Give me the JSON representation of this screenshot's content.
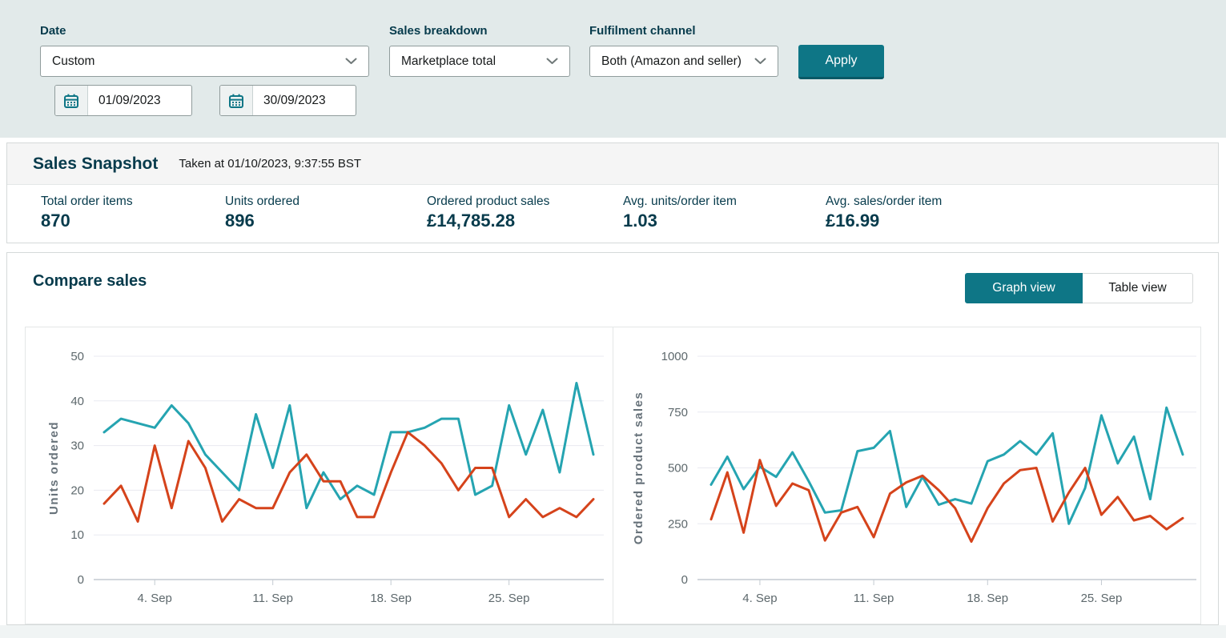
{
  "filters": {
    "date": {
      "label": "Date",
      "value": "Custom",
      "start_date": "01/09/2023",
      "end_date": "30/09/2023"
    },
    "sales_breakdown": {
      "label": "Sales breakdown",
      "value": "Marketplace total"
    },
    "fulfilment_channel": {
      "label": "Fulfilment channel",
      "value": "Both (Amazon and seller)"
    },
    "apply_label": "Apply"
  },
  "snapshot": {
    "title": "Sales Snapshot",
    "taken_at": "Taken at 01/10/2023, 9:37:55 BST",
    "metrics": [
      {
        "label": "Total order items",
        "value": "870"
      },
      {
        "label": "Units ordered",
        "value": "896"
      },
      {
        "label": "Ordered product sales",
        "value": "£14,785.28"
      },
      {
        "label": "Avg. units/order item",
        "value": "1.03"
      },
      {
        "label": "Avg. sales/order item",
        "value": "£16.99"
      }
    ]
  },
  "compare": {
    "title": "Compare sales",
    "views": [
      {
        "label": "Graph view",
        "active": true
      },
      {
        "label": "Table view",
        "active": false
      }
    ]
  },
  "chart_data": [
    {
      "type": "line",
      "title": "",
      "xlabel": "",
      "ylabel": "Units ordered",
      "ylim": [
        0,
        50
      ],
      "yticks": [
        0,
        10,
        20,
        30,
        40,
        50
      ],
      "grid": true,
      "legend": "none",
      "x": [
        1,
        2,
        3,
        4,
        5,
        6,
        7,
        8,
        9,
        10,
        11,
        12,
        13,
        14,
        15,
        16,
        17,
        18,
        19,
        20,
        21,
        22,
        23,
        24,
        25,
        26,
        27,
        28,
        29,
        30
      ],
      "x_tick_positions": [
        4,
        11,
        18,
        25
      ],
      "x_tick_labels": [
        "4. Sep",
        "11. Sep",
        "18. Sep",
        "25. Sep"
      ],
      "series": [
        {
          "name": "teal",
          "color": "#25a4b1",
          "values": [
            33,
            36,
            35,
            34,
            39,
            35,
            28,
            24,
            20,
            37,
            25,
            39,
            16,
            24,
            18,
            21,
            19,
            33,
            33,
            34,
            36,
            36,
            19,
            21,
            39,
            28,
            38,
            24,
            44,
            28
          ]
        },
        {
          "name": "red",
          "color": "#d5431b",
          "values": [
            17,
            21,
            13,
            30,
            16,
            31,
            25,
            13,
            18,
            16,
            16,
            24,
            28,
            22,
            22,
            14,
            14,
            24,
            33,
            30,
            26,
            20,
            25,
            25,
            14,
            18,
            14,
            16,
            14,
            18
          ]
        }
      ]
    },
    {
      "type": "line",
      "title": "",
      "xlabel": "",
      "ylabel": "Ordered product sales",
      "ylim": [
        0,
        1000
      ],
      "yticks": [
        0,
        250,
        500,
        750,
        1000
      ],
      "grid": true,
      "legend": "none",
      "x": [
        1,
        2,
        3,
        4,
        5,
        6,
        7,
        8,
        9,
        10,
        11,
        12,
        13,
        14,
        15,
        16,
        17,
        18,
        19,
        20,
        21,
        22,
        23,
        24,
        25,
        26,
        27,
        28,
        29,
        30
      ],
      "x_tick_positions": [
        4,
        11,
        18,
        25
      ],
      "x_tick_labels": [
        "4. Sep",
        "11. Sep",
        "18. Sep",
        "25. Sep"
      ],
      "series": [
        {
          "name": "teal",
          "color": "#25a4b1",
          "values": [
            425,
            550,
            405,
            505,
            460,
            570,
            440,
            300,
            310,
            575,
            590,
            665,
            325,
            460,
            335,
            360,
            340,
            530,
            560,
            620,
            560,
            655,
            250,
            410,
            735,
            520,
            640,
            360,
            770,
            560
          ]
        },
        {
          "name": "red",
          "color": "#d5431b",
          "values": [
            270,
            480,
            210,
            535,
            330,
            430,
            400,
            175,
            300,
            325,
            190,
            385,
            435,
            465,
            400,
            320,
            170,
            320,
            430,
            490,
            500,
            260,
            390,
            500,
            290,
            370,
            265,
            285,
            225,
            275
          ]
        }
      ]
    }
  ],
  "colors": {
    "accent_teal": "#0e7686",
    "panel_bg": "#e2eaea",
    "heading_text": "#073b4c",
    "chart_teal": "#25a4b1",
    "chart_red": "#d5431b"
  }
}
